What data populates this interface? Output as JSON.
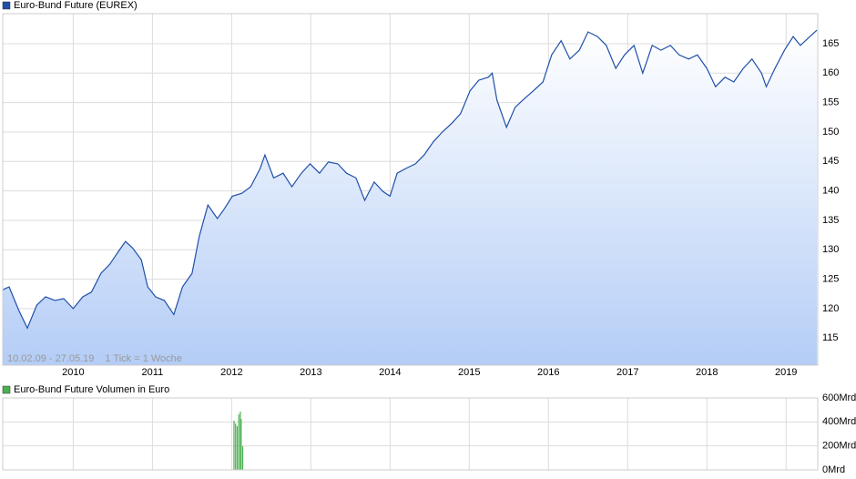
{
  "chart_data": [
    {
      "type": "area",
      "annotations": [
        "10.02.09 - 27.05.19",
        "1 Tick = 1 Woche"
      ],
      "series": [
        {
          "name": "Euro-Bund Future (EUREX)",
          "color": "#1f4fa8",
          "x": [
            2009.11,
            2009.19,
            2009.31,
            2009.42,
            2009.54,
            2009.65,
            2009.77,
            2009.88,
            2010.0,
            2010.12,
            2010.23,
            2010.35,
            2010.46,
            2010.58,
            2010.66,
            2010.75,
            2010.86,
            2010.94,
            2011.04,
            2011.15,
            2011.27,
            2011.38,
            2011.5,
            2011.59,
            2011.7,
            2011.82,
            2011.9,
            2012.01,
            2012.13,
            2012.24,
            2012.36,
            2012.42,
            2012.53,
            2012.65,
            2012.76,
            2012.88,
            2012.99,
            2013.11,
            2013.22,
            2013.34,
            2013.45,
            2013.57,
            2013.68,
            2013.8,
            2013.91,
            2014.0,
            2014.09,
            2014.2,
            2014.32,
            2014.43,
            2014.55,
            2014.66,
            2014.78,
            2014.89,
            2015.01,
            2015.12,
            2015.24,
            2015.29,
            2015.35,
            2015.47,
            2015.58,
            2015.7,
            2015.81,
            2015.93,
            2016.04,
            2016.16,
            2016.27,
            2016.39,
            2016.5,
            2016.62,
            2016.73,
            2016.85,
            2016.96,
            2017.08,
            2017.19,
            2017.31,
            2017.42,
            2017.54,
            2017.65,
            2017.77,
            2017.88,
            2018.0,
            2018.11,
            2018.23,
            2018.34,
            2018.46,
            2018.57,
            2018.69,
            2018.75,
            2018.86,
            2018.98,
            2019.09,
            2019.18,
            2019.3,
            2019.39
          ],
          "values": [
            123.2,
            123.7,
            119.8,
            116.7,
            120.6,
            122,
            121.4,
            121.7,
            120,
            122,
            122.8,
            126,
            127.5,
            129.9,
            131.4,
            130.3,
            128.3,
            123.7,
            122,
            121.4,
            119,
            123.7,
            126,
            132.2,
            137.6,
            135.3,
            136.8,
            139.1,
            139.6,
            140.7,
            143.8,
            146.1,
            142.2,
            143,
            140.7,
            143,
            144.6,
            143,
            144.9,
            144.6,
            143,
            142.2,
            138.4,
            141.5,
            139.9,
            139.1,
            143,
            143.8,
            144.6,
            146.1,
            148.4,
            150,
            151.5,
            153.1,
            157,
            158.8,
            159.3,
            160,
            155.4,
            150.8,
            154.2,
            155.7,
            157,
            158.5,
            163.1,
            165.5,
            162.4,
            163.9,
            167,
            166.2,
            164.7,
            160.8,
            163.1,
            164.7,
            160,
            164.7,
            163.9,
            164.7,
            163.1,
            162.4,
            163.1,
            160.8,
            157.7,
            159.3,
            158.5,
            160.8,
            162.4,
            160,
            157.7,
            160.8,
            163.9,
            166.2,
            164.7,
            166.2,
            167.3
          ]
        }
      ],
      "xlim": [
        2009.11,
        2019.4
      ],
      "xticks": [
        2010,
        2011,
        2012,
        2013,
        2014,
        2015,
        2016,
        2017,
        2018,
        2019
      ],
      "ylim": [
        110.4,
        170.1
      ],
      "yticks": [
        115,
        120,
        125,
        130,
        135,
        140,
        145,
        150,
        155,
        160,
        165
      ],
      "grid": true
    },
    {
      "type": "bar",
      "series": [
        {
          "name": "Euro-Bund Future Volumen in Euro",
          "color": "#4caf50",
          "x": [
            2012.03,
            2012.05,
            2012.07,
            2012.09,
            2012.11,
            2012.12,
            2012.14
          ],
          "values": [
            410,
            387,
            364,
            463,
            486,
            425,
            197
          ]
        }
      ],
      "xlim": [
        2009.11,
        2019.4
      ],
      "xticks": [
        2010,
        2011,
        2012,
        2013,
        2014,
        2015,
        2016,
        2017,
        2018,
        2019
      ],
      "ylim": [
        0,
        600
      ],
      "yticks": [
        {
          "value": 0,
          "label": "0Mrd"
        },
        {
          "value": 200,
          "label": "200Mrd"
        },
        {
          "value": 400,
          "label": "400Mrd"
        },
        {
          "value": 600,
          "label": "600Mrd"
        }
      ],
      "grid": true
    }
  ]
}
